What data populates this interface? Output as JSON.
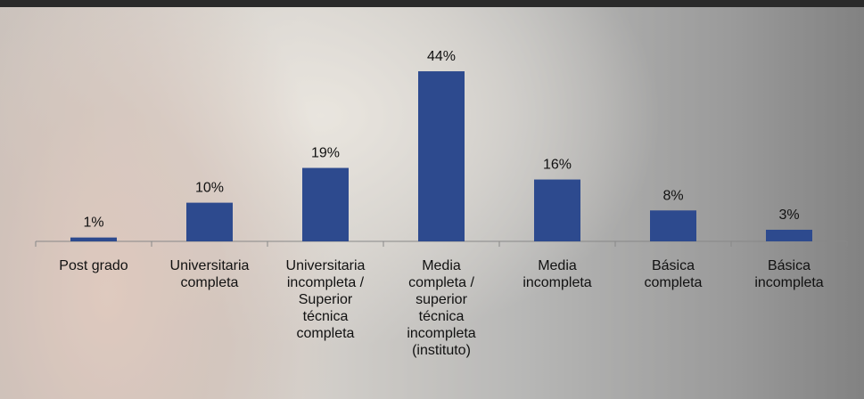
{
  "chart_data": {
    "type": "bar",
    "categories": [
      "Post grado",
      "Universitaria completa",
      "Universitaria incompleta / Superior técnica completa",
      "Media completa / superior técnica incompleta (instituto)",
      "Media incompleta",
      "Básica completa",
      "Básica incompleta"
    ],
    "values": [
      1,
      10,
      19,
      44,
      16,
      8,
      3
    ],
    "value_labels": [
      "1%",
      "10%",
      "19%",
      "44%",
      "16%",
      "8%",
      "3%"
    ],
    "color": "#2d4a8e"
  }
}
